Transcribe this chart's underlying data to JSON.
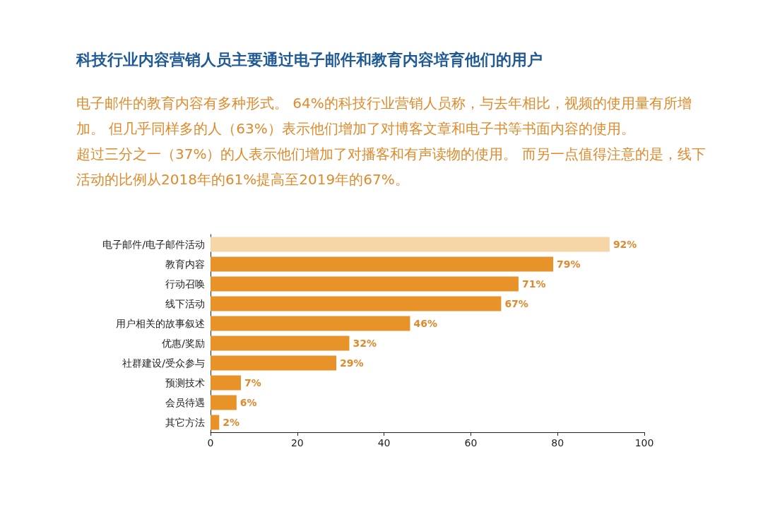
{
  "chart_data": {
    "type": "bar",
    "orientation": "horizontal",
    "title": "科技行业内容营销人员主要通过电子邮件和教育内容培育他们的用户",
    "subtitle": "电子邮件的教育内容有多种形式。 64%的科技行业营销人员称，与去年相比，视频的使用量有所增加。 但几乎同样多的人（63%）表示他们增加了对博客文章和电子书等书面内容的使用。",
    "annotations": [
      "超过三分之一（37%）的人表示他们增加了对播客和有声读物的使用。 而另一点值得注意的是，线下活动的比例从2018年的61%提高至2019年的67%。"
    ],
    "categories": [
      "电子邮件/电子邮件活动",
      "教育内容",
      "行动召唤",
      "线下活动",
      "用户相关的故事叙述",
      "优惠/奖励",
      "社群建设/受众参与",
      "预测技术",
      "会员待遇",
      "其它方法"
    ],
    "values": [
      92,
      79,
      71,
      67,
      46,
      32,
      29,
      7,
      6,
      2
    ],
    "colors": [
      "#f6d5a6",
      "#e8922a",
      "#e8922a",
      "#e8922a",
      "#e8922a",
      "#e8922a",
      "#e8922a",
      "#e8922a",
      "#e8922a",
      "#e8922a"
    ],
    "value_labels": [
      "92%",
      "79%",
      "71%",
      "67%",
      "46%",
      "32%",
      "29%",
      "7%",
      "6%",
      "2%"
    ],
    "xlim": [
      0,
      100
    ],
    "xticks": [
      0,
      20,
      40,
      60,
      80,
      100
    ],
    "grid": false
  }
}
